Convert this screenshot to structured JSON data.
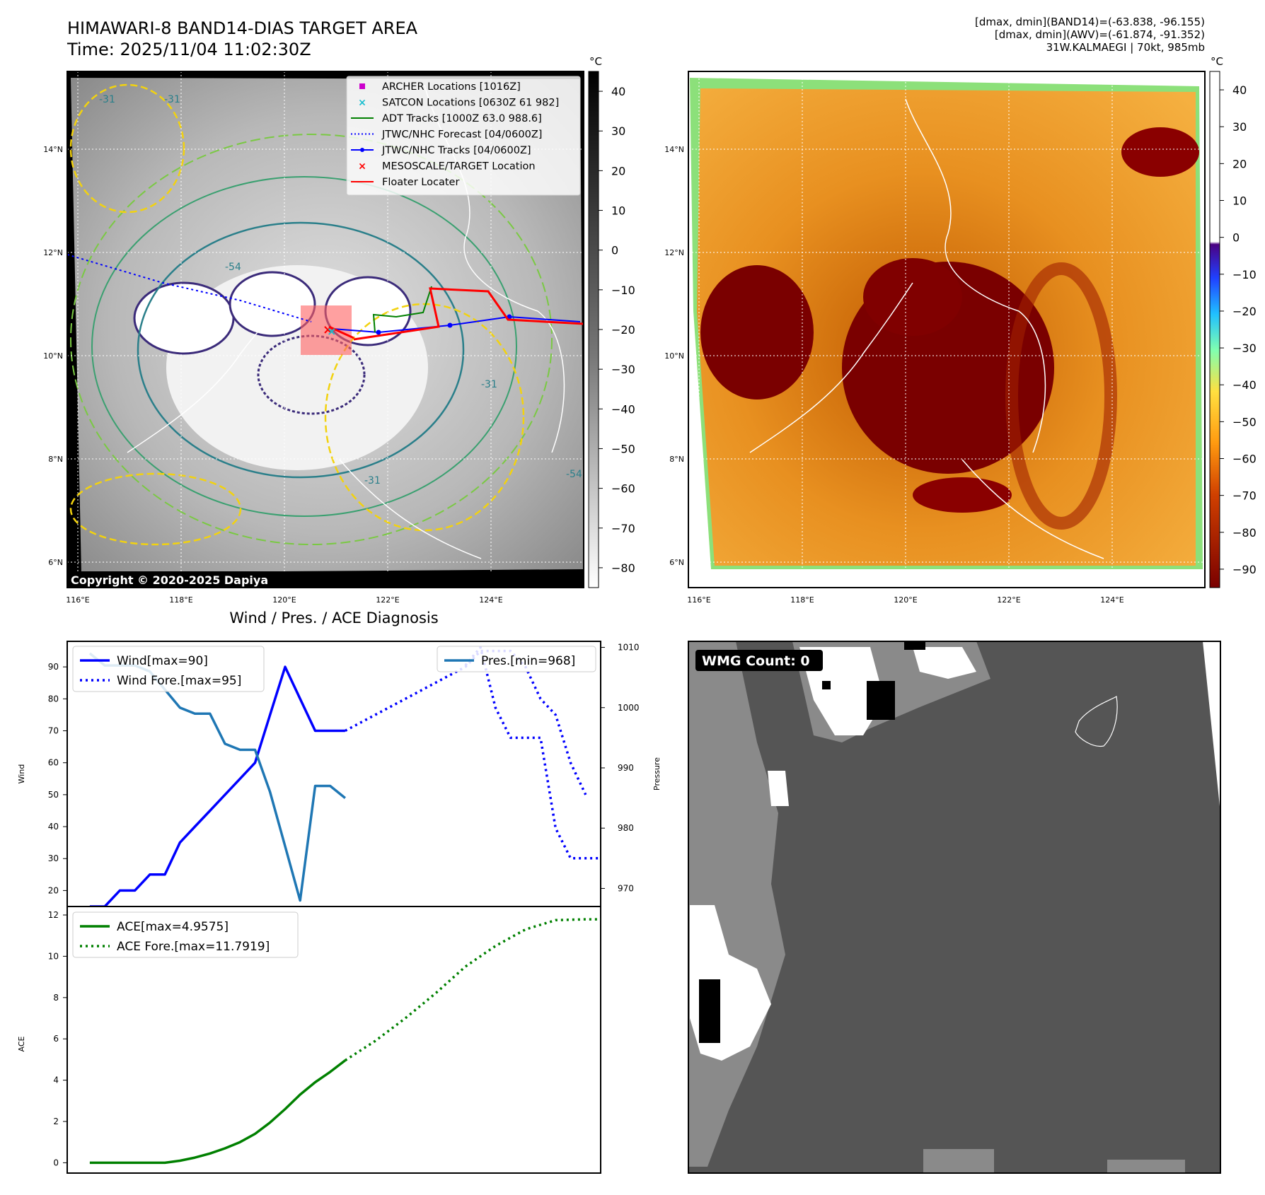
{
  "header": {
    "title_line1": "HIMAWARI-8 BAND14-DIAS TARGET AREA",
    "title_line2": "Time: 2025/11/04 11:02:30Z",
    "info_line1": "[dmax, dmin](BAND14)=(-63.838, -96.155)",
    "info_line2": "[dmax, dmin](AWV)=(-61.874, -91.352)",
    "info_line3": "31W.KALMAEGI | 70kt, 985mb"
  },
  "map1": {
    "colorbar_unit": "°C",
    "colorbar_ticks": [
      "40",
      "30",
      "20",
      "10",
      "0",
      "−10",
      "−20",
      "−30",
      "−40",
      "−50",
      "−60",
      "−70",
      "−80"
    ],
    "lat_labels": [
      "14°N",
      "12°N",
      "10°N",
      "8°N",
      "6°N"
    ],
    "lon_labels": [
      "116°E",
      "118°E",
      "120°E",
      "122°E",
      "124°E"
    ],
    "copyright": "Copyright © 2020-2025 Dapiya",
    "contour_labels": [
      "-31",
      "-31",
      "-54",
      "-31",
      "-54",
      "-31"
    ],
    "legend": [
      {
        "label": "ARCHER Locations [1016Z]",
        "color": "#cc00cc",
        "marker": "square"
      },
      {
        "label": "SATCON Locations [0630Z 61 982]",
        "color": "#17becf",
        "marker": "x"
      },
      {
        "label": "ADT Tracks [1000Z 63.0 988.6]",
        "color": "#008000",
        "marker": "line"
      },
      {
        "label": "JTWC/NHC Forecast [04/0600Z]",
        "color": "#0000ff",
        "marker": "dotted"
      },
      {
        "label": "JTWC/NHC Tracks [04/0600Z]",
        "color": "#0000ff",
        "marker": "line-dot"
      },
      {
        "label": "MESOSCALE/TARGET Location",
        "color": "#ff0000",
        "marker": "x"
      },
      {
        "label": "Floater Locater",
        "color": "#ff0000",
        "marker": "line"
      }
    ]
  },
  "map2": {
    "colorbar_unit": "°C",
    "colorbar_ticks": [
      "40",
      "30",
      "20",
      "10",
      "0",
      "−10",
      "−20",
      "−30",
      "−40",
      "−50",
      "−60",
      "−70",
      "−80",
      "−90"
    ],
    "lat_labels": [
      "14°N",
      "12°N",
      "10°N",
      "8°N",
      "6°N"
    ],
    "lon_labels": [
      "116°E",
      "118°E",
      "120°E",
      "122°E",
      "124°E"
    ]
  },
  "wmg": {
    "count_label": "WMG Count: 0"
  },
  "chart_data": [
    {
      "type": "line",
      "title": "Wind / Pres. / ACE Diagnosis",
      "ylabel": "Wind",
      "y2label": "Pressure",
      "ylim": [
        15,
        98
      ],
      "y2lim": [
        967,
        1011
      ],
      "yticks": [
        20,
        30,
        40,
        50,
        60,
        70,
        80,
        90
      ],
      "y2ticks": [
        970,
        980,
        990,
        1000,
        1010
      ],
      "xlim": [
        -1.5,
        34
      ],
      "series": [
        {
          "name": "Wind[max=90]",
          "axis": "left",
          "color": "#0000ff",
          "style": "solid",
          "x": [
            0,
            1,
            2,
            3,
            4,
            5,
            6,
            7,
            8,
            9,
            10,
            11,
            12,
            13,
            14,
            15,
            16,
            17
          ],
          "y": [
            15,
            15,
            20,
            20,
            25,
            25,
            35,
            40,
            45,
            50,
            55,
            60,
            75,
            90,
            80,
            70,
            70,
            70
          ]
        },
        {
          "name": "Wind Fore.[max=95]",
          "axis": "left",
          "color": "#0000ff",
          "style": "dotted",
          "x": [
            17,
            21,
            25,
            26,
            27,
            28,
            29,
            30,
            31,
            32,
            33
          ],
          "y": [
            70,
            80,
            90,
            95,
            95,
            95,
            90,
            80,
            75,
            60,
            50
          ]
        },
        {
          "name": "Pres.[min=968]",
          "axis": "right",
          "color": "#1f77b4",
          "style": "solid",
          "x": [
            0,
            1,
            2,
            3,
            4,
            5,
            6,
            7,
            8,
            9,
            10,
            11,
            12,
            13,
            14,
            15,
            16,
            17
          ],
          "y": [
            1009,
            1007,
            1007,
            1007,
            1006,
            1003,
            1000,
            999,
            999,
            994,
            993,
            993,
            986,
            977,
            968,
            987,
            987,
            985
          ]
        },
        {
          "name": "",
          "axis": "right",
          "color": "#0000ff",
          "style": "dotted",
          "x": [
            25,
            26,
            27,
            28,
            29,
            30,
            31,
            32,
            33,
            34
          ],
          "y": [
            1007,
            1010,
            1000,
            995,
            995,
            995,
            980,
            975,
            975,
            975
          ]
        }
      ],
      "legend_left": [
        {
          "label": "Wind[max=90]",
          "color": "#0000ff",
          "style": "solid"
        },
        {
          "label": "Wind Fore.[max=95]",
          "color": "#0000ff",
          "style": "dotted"
        }
      ],
      "legend_right": [
        {
          "label": "Pres.[min=968]",
          "color": "#1f77b4",
          "style": "solid"
        }
      ]
    },
    {
      "type": "line",
      "ylabel": "ACE",
      "ylim": [
        -0.5,
        12
      ],
      "yticks": [
        0,
        2,
        4,
        6,
        8,
        10,
        12
      ],
      "xlim": [
        -1.5,
        34
      ],
      "series": [
        {
          "name": "ACE[max=4.9575]",
          "color": "#008000",
          "style": "solid",
          "x": [
            0,
            1,
            2,
            3,
            4,
            5,
            6,
            7,
            8,
            9,
            10,
            11,
            12,
            13,
            14,
            15,
            16,
            17
          ],
          "y": [
            0,
            0,
            0,
            0,
            0,
            0,
            0.1,
            0.25,
            0.45,
            0.7,
            1.0,
            1.4,
            1.95,
            2.6,
            3.3,
            3.9,
            4.4,
            4.9575
          ]
        },
        {
          "name": "ACE Fore.[max=11.7919]",
          "color": "#008000",
          "style": "dotted",
          "x": [
            17,
            19,
            21,
            23,
            25,
            27,
            29,
            31,
            33,
            34
          ],
          "y": [
            4.9575,
            5.9,
            7.0,
            8.2,
            9.5,
            10.5,
            11.3,
            11.75,
            11.79,
            11.7919
          ]
        }
      ],
      "legend": [
        {
          "label": "ACE[max=4.9575]",
          "color": "#008000",
          "style": "solid"
        },
        {
          "label": "ACE Fore.[max=11.7919]",
          "color": "#008000",
          "style": "dotted"
        }
      ]
    }
  ]
}
